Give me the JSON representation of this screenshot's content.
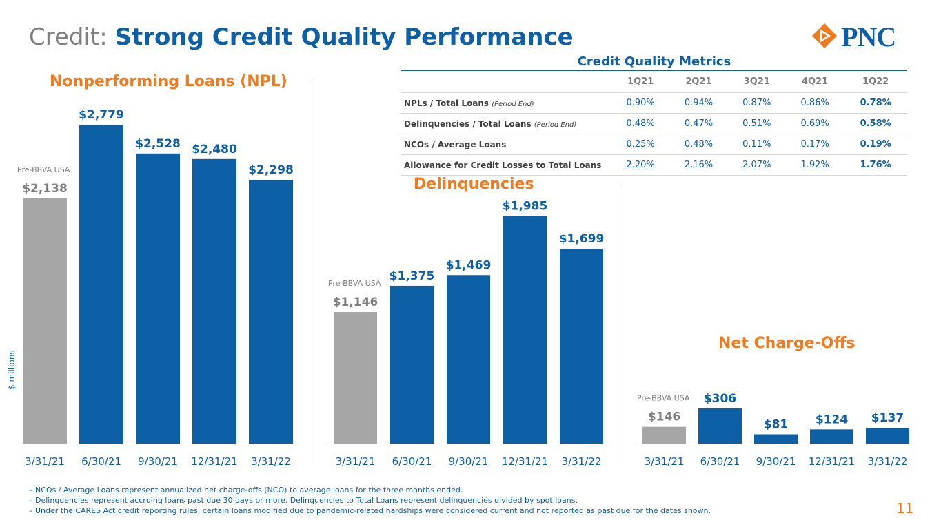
{
  "title": {
    "prefix": "Credit:",
    "main": "Strong Credit Quality Performance"
  },
  "logo": {
    "text": "PNC"
  },
  "axis_note": "$ millions",
  "colors": {
    "blue": "#0d5fa6",
    "gray": "#a6a6a6",
    "orange": "#f07c22"
  },
  "metrics_table": {
    "title": "Credit Quality Metrics",
    "headers": [
      "1Q21",
      "2Q21",
      "3Q21",
      "4Q21",
      "1Q22"
    ],
    "rows": [
      {
        "label": "NPLs / Total Loans",
        "note": "(Period End)",
        "values": [
          "0.90%",
          "0.94%",
          "0.87%",
          "0.86%",
          "0.78%"
        ]
      },
      {
        "label": "Delinquencies / Total Loans",
        "note": "(Period End)",
        "values": [
          "0.48%",
          "0.47%",
          "0.51%",
          "0.69%",
          "0.58%"
        ]
      },
      {
        "label": "NCOs / Average Loans",
        "note": "",
        "values": [
          "0.25%",
          "0.48%",
          "0.11%",
          "0.17%",
          "0.19%"
        ]
      },
      {
        "label": "Allowance for Credit Losses to Total Loans",
        "note": "",
        "values": [
          "2.20%",
          "2.16%",
          "2.07%",
          "1.92%",
          "1.76%"
        ]
      }
    ]
  },
  "chart_data": [
    {
      "type": "bar",
      "title": "Nonperforming Loans (NPL)",
      "categories": [
        "3/31/21",
        "6/30/21",
        "9/30/21",
        "12/31/21",
        "3/31/22"
      ],
      "values": [
        2138,
        2779,
        2528,
        2480,
        2298
      ],
      "labels": [
        "$2,138",
        "$2,779",
        "$2,528",
        "$2,480",
        "$2,298"
      ],
      "first_bar_note": "Pre-BBVA USA",
      "ylabel": "$ millions"
    },
    {
      "type": "bar",
      "title": "Delinquencies",
      "categories": [
        "3/31/21",
        "6/30/21",
        "9/30/21",
        "12/31/21",
        "3/31/22"
      ],
      "values": [
        1146,
        1375,
        1469,
        1985,
        1699
      ],
      "labels": [
        "$1,146",
        "$1,375",
        "$1,469",
        "$1,985",
        "$1,699"
      ],
      "first_bar_note": "Pre-BBVA USA"
    },
    {
      "type": "bar",
      "title": "Net Charge-Offs",
      "categories": [
        "3/31/21",
        "6/30/21",
        "9/30/21",
        "12/31/21",
        "3/31/22"
      ],
      "values": [
        146,
        306,
        81,
        124,
        137
      ],
      "labels": [
        "$146",
        "$306",
        "$81",
        "$124",
        "$137"
      ],
      "first_bar_note": "Pre-BBVA USA"
    }
  ],
  "footnotes": [
    "– NCOs / Average Loans represent annualized net charge-offs (NCO) to average loans for the three months ended.",
    "– Delinquencies represent accruing loans past due 30 days or more. Delinquencies to Total Loans represent delinquencies divided by spot loans.",
    "– Under the CARES Act credit reporting rules, certain loans modified due to pandemic-related hardships were considered current and not reported as past due for the dates shown."
  ],
  "page_number": "11"
}
